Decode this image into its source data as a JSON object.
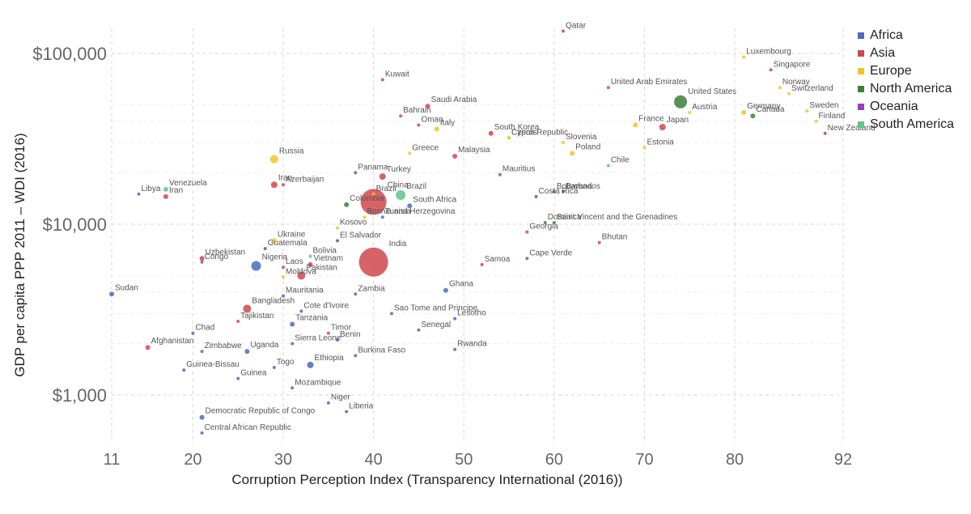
{
  "chart_data": {
    "type": "scatter",
    "title": "",
    "xlabel": "Corruption Perception Index (Transparency International (2016))",
    "ylabel": "GDP per capita PPP 2011 – WDI (2016)",
    "x_scale": "linear",
    "y_scale": "log",
    "xlim": [
      11,
      92
    ],
    "ylim": [
      520,
      140000
    ],
    "x_ticks": [
      11,
      20,
      30,
      40,
      50,
      60,
      70,
      80,
      92
    ],
    "x_tick_labels": [
      "11",
      "20",
      "30",
      "40",
      "50",
      "60",
      "70",
      "80",
      "92"
    ],
    "y_ticks": [
      1000,
      10000,
      100000
    ],
    "y_tick_labels": [
      "$1,000",
      "$10,000",
      "$100,000"
    ],
    "grid": true,
    "legend_position": "top-right",
    "legend": [
      {
        "name": "Africa",
        "color": "#4a6bbf"
      },
      {
        "name": "Asia",
        "color": "#d0484e"
      },
      {
        "name": "Europe",
        "color": "#f3c327"
      },
      {
        "name": "North America",
        "color": "#3d7f3d"
      },
      {
        "name": "Oceania",
        "color": "#9b3fbf"
      },
      {
        "name": "South America",
        "color": "#5ec48a"
      }
    ],
    "series": [
      {
        "name": "Africa",
        "color": "#4a6bbf",
        "points": [
          {
            "label": "Sudan",
            "x": 11,
            "y": 3900,
            "size": 3
          },
          {
            "label": "Congo",
            "x": 21,
            "y": 6000,
            "size": 2
          },
          {
            "label": "Nigeria",
            "x": 27,
            "y": 5700,
            "size": 6
          },
          {
            "label": "Mauritania",
            "x": 30,
            "y": 3800,
            "size": 2
          },
          {
            "label": "Cote d'Ivoire",
            "x": 32,
            "y": 3100,
            "size": 2
          },
          {
            "label": "Chad",
            "x": 20,
            "y": 2300,
            "size": 2
          },
          {
            "label": "Zimbabwe",
            "x": 21,
            "y": 1800,
            "size": 2
          },
          {
            "label": "Uganda",
            "x": 26,
            "y": 1800,
            "size": 3
          },
          {
            "label": "Guinea-Bissau",
            "x": 19,
            "y": 1400,
            "size": 2
          },
          {
            "label": "Guinea",
            "x": 25,
            "y": 1250,
            "size": 2
          },
          {
            "label": "Togo",
            "x": 29,
            "y": 1450,
            "size": 2
          },
          {
            "label": "Tanzania",
            "x": 31,
            "y": 2600,
            "size": 3
          },
          {
            "label": "Sierra Leone",
            "x": 31,
            "y": 2000,
            "size": 2
          },
          {
            "label": "Ethiopia",
            "x": 33,
            "y": 1500,
            "size": 4
          },
          {
            "label": "Mozambique",
            "x": 31,
            "y": 1100,
            "size": 2
          },
          {
            "label": "Niger",
            "x": 35,
            "y": 900,
            "size": 2
          },
          {
            "label": "Liberia",
            "x": 37,
            "y": 800,
            "size": 2
          },
          {
            "label": "Democratic Republic of Congo",
            "x": 21,
            "y": 740,
            "size": 3
          },
          {
            "label": "Central African Republic",
            "x": 21,
            "y": 600,
            "size": 2
          },
          {
            "label": "Zambia",
            "x": 38,
            "y": 3900,
            "size": 2
          },
          {
            "label": "Benin",
            "x": 36,
            "y": 2100,
            "size": 2
          },
          {
            "label": "Burkina Faso",
            "x": 38,
            "y": 1700,
            "size": 2
          },
          {
            "label": "Sao Tome and Principe",
            "x": 42,
            "y": 3000,
            "size": 2
          },
          {
            "label": "Senegal",
            "x": 45,
            "y": 2400,
            "size": 2
          },
          {
            "label": "Ghana",
            "x": 48,
            "y": 4100,
            "size": 3
          },
          {
            "label": "Lesotho",
            "x": 49,
            "y": 2800,
            "size": 2
          },
          {
            "label": "Rwanda",
            "x": 49,
            "y": 1850,
            "size": 2
          },
          {
            "label": "Tunisia",
            "x": 41,
            "y": 11000,
            "size": 2
          },
          {
            "label": "South Africa",
            "x": 44,
            "y": 12800,
            "size": 3
          },
          {
            "label": "Mauritius",
            "x": 54,
            "y": 19500,
            "size": 2
          },
          {
            "label": "Botswana",
            "x": 60,
            "y": 15500,
            "size": 2
          },
          {
            "label": "Cape Verde",
            "x": 57,
            "y": 6300,
            "size": 2
          },
          {
            "label": "Libya",
            "x": 14,
            "y": 15000,
            "size": 2
          }
        ]
      },
      {
        "name": "Asia",
        "color": "#d0484e",
        "points": [
          {
            "label": "Afghanistan",
            "x": 15,
            "y": 1900,
            "size": 3
          },
          {
            "label": "Iran",
            "x": 17,
            "y": 14500,
            "size": 3
          },
          {
            "label": "Uzbekistan",
            "x": 21,
            "y": 6300,
            "size": 3
          },
          {
            "label": "Laos",
            "x": 30,
            "y": 5600,
            "size": 2
          },
          {
            "label": "Pakistan",
            "x": 32,
            "y": 5000,
            "size": 5
          },
          {
            "label": "Vietnam",
            "x": 33,
            "y": 5800,
            "size": 3
          },
          {
            "label": "Bangladesh",
            "x": 26,
            "y": 3200,
            "size": 5
          },
          {
            "label": "Tajikistan",
            "x": 25,
            "y": 2700,
            "size": 2
          },
          {
            "label": "Timor",
            "x": 35,
            "y": 2300,
            "size": 2
          },
          {
            "label": "Iran",
            "x": 29,
            "y": 17000,
            "size": 4
          },
          {
            "label": "Azerbaijan",
            "x": 30,
            "y": 17000,
            "size": 2
          },
          {
            "label": "India",
            "x": 40,
            "y": 6000,
            "size": 18
          },
          {
            "label": "China",
            "x": 40,
            "y": 13500,
            "size": 16
          },
          {
            "label": "Kuwait",
            "x": 41,
            "y": 70000,
            "size": 2
          },
          {
            "label": "Saudi Arabia",
            "x": 46,
            "y": 49000,
            "size": 3
          },
          {
            "label": "Bahrain",
            "x": 43,
            "y": 43000,
            "size": 2
          },
          {
            "label": "Oman",
            "x": 45,
            "y": 38000,
            "size": 2
          },
          {
            "label": "Turkey",
            "x": 41,
            "y": 19000,
            "size": 4
          },
          {
            "label": "Malaysia",
            "x": 49,
            "y": 25000,
            "size": 3
          },
          {
            "label": "South Korea",
            "x": 53,
            "y": 34000,
            "size": 3
          },
          {
            "label": "Georgia",
            "x": 57,
            "y": 9000,
            "size": 2
          },
          {
            "label": "Samoa",
            "x": 52,
            "y": 5800,
            "size": 2
          },
          {
            "label": "Bhutan",
            "x": 65,
            "y": 7800,
            "size": 2
          },
          {
            "label": "United Arab Emirates",
            "x": 66,
            "y": 63000,
            "size": 2
          },
          {
            "label": "Japan",
            "x": 72,
            "y": 37000,
            "size": 4
          },
          {
            "label": "Singapore",
            "x": 84,
            "y": 80000,
            "size": 2
          },
          {
            "label": "Qatar",
            "x": 61,
            "y": 135000,
            "size": 2
          }
        ]
      },
      {
        "name": "Europe",
        "color": "#f3c327",
        "points": [
          {
            "label": "Russia",
            "x": 29,
            "y": 24000,
            "size": 5
          },
          {
            "label": "Ukraine",
            "x": 29,
            "y": 8000,
            "size": 3
          },
          {
            "label": "Kosovo",
            "x": 36,
            "y": 9500,
            "size": 2
          },
          {
            "label": "Bosnia and Herzegovina",
            "x": 39,
            "y": 11000,
            "size": 2
          },
          {
            "label": "Moldova",
            "x": 30,
            "y": 4900,
            "size": 2
          },
          {
            "label": "Italy",
            "x": 47,
            "y": 36000,
            "size": 3
          },
          {
            "label": "Greece",
            "x": 44,
            "y": 26000,
            "size": 2
          },
          {
            "label": "Brazil",
            "x": 40,
            "y": 15000,
            "size": 2
          },
          {
            "label": "Czech Republic",
            "x": 55,
            "y": 32000,
            "size": 2
          },
          {
            "label": "Slovenia",
            "x": 61,
            "y": 30000,
            "size": 2
          },
          {
            "label": "Cyprus",
            "x": 55,
            "y": 32000,
            "size": 2
          },
          {
            "label": "Poland",
            "x": 62,
            "y": 26000,
            "size": 3
          },
          {
            "label": "Estonia",
            "x": 70,
            "y": 28000,
            "size": 2
          },
          {
            "label": "France",
            "x": 69,
            "y": 38000,
            "size": 3
          },
          {
            "label": "Austria",
            "x": 75,
            "y": 45000,
            "size": 2
          },
          {
            "label": "Germany",
            "x": 81,
            "y": 45000,
            "size": 3
          },
          {
            "label": "Luxembourg",
            "x": 81,
            "y": 95000,
            "size": 2
          },
          {
            "label": "Norway",
            "x": 85,
            "y": 63000,
            "size": 2
          },
          {
            "label": "Switzerland",
            "x": 86,
            "y": 58000,
            "size": 2
          },
          {
            "label": "Sweden",
            "x": 88,
            "y": 46000,
            "size": 2
          },
          {
            "label": "Finland",
            "x": 89,
            "y": 40000,
            "size": 2
          }
        ]
      },
      {
        "name": "North America",
        "color": "#3d7f3d",
        "points": [
          {
            "label": "Panama",
            "x": 38,
            "y": 20000,
            "size": 2
          },
          {
            "label": "Colombia",
            "x": 37,
            "y": 13000,
            "size": 3
          },
          {
            "label": "El Salvador",
            "x": 36,
            "y": 8000,
            "size": 2
          },
          {
            "label": "Guatemala",
            "x": 28,
            "y": 7200,
            "size": 2
          },
          {
            "label": "Dominica",
            "x": 59,
            "y": 10200,
            "size": 2
          },
          {
            "label": "Saint Vincent and the Grenadines",
            "x": 60,
            "y": 10200,
            "size": 2
          },
          {
            "label": "Barbados",
            "x": 61,
            "y": 15500,
            "size": 2
          },
          {
            "label": "Costa Rica",
            "x": 58,
            "y": 14500,
            "size": 2
          },
          {
            "label": "United States",
            "x": 74,
            "y": 52000,
            "size": 8
          },
          {
            "label": "Canada",
            "x": 82,
            "y": 43000,
            "size": 3
          }
        ]
      },
      {
        "name": "Oceania",
        "color": "#9b3fbf",
        "points": [
          {
            "label": "New Zealand",
            "x": 90,
            "y": 34000,
            "size": 2
          }
        ]
      },
      {
        "name": "South America",
        "color": "#5ec48a",
        "points": [
          {
            "label": "Venezuela",
            "x": 17,
            "y": 16000,
            "size": 3
          },
          {
            "label": "Bolivia",
            "x": 33,
            "y": 6500,
            "size": 2
          },
          {
            "label": "Chile",
            "x": 66,
            "y": 22000,
            "size": 2
          },
          {
            "label": "Brazil",
            "x": 43,
            "y": 14800,
            "size": 6
          }
        ]
      }
    ]
  }
}
